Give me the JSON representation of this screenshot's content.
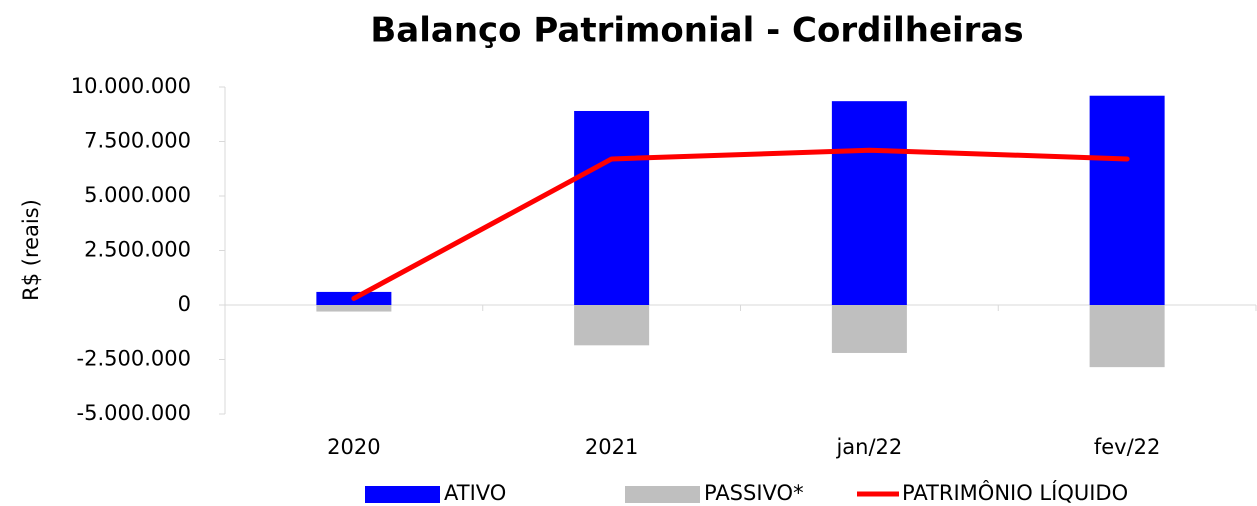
{
  "chart_data": {
    "type": "bar",
    "title": "Balanço Patrimonial - Cordilheiras",
    "y_label": "R$ (reais)",
    "categories": [
      "2020",
      "2021",
      "jan/22",
      "fev/22"
    ],
    "series": [
      {
        "name": "ATIVO",
        "type": "bar",
        "color": "#0000ff",
        "values": [
          600000,
          8900000,
          9350000,
          9600000
        ]
      },
      {
        "name": "PASSIVO*",
        "type": "bar",
        "color": "#bfbfbf",
        "values": [
          -300000,
          -1850000,
          -2200000,
          -2850000
        ]
      },
      {
        "name": "PATRIMÔNIO LÍQUIDO",
        "type": "line",
        "color": "#ff0000",
        "values": [
          300000,
          6700000,
          7100000,
          6700000
        ]
      }
    ],
    "ylim": [
      -5000000,
      10000000
    ],
    "yticks": [
      {
        "value": 10000000,
        "label": "10.000.000"
      },
      {
        "value": 7500000,
        "label": "7.500.000"
      },
      {
        "value": 5000000,
        "label": "5.000.000"
      },
      {
        "value": 2500000,
        "label": "2.500.000"
      },
      0,
      {
        "value": -2500000,
        "label": "-2.500.000"
      },
      {
        "value": -5000000,
        "label": "-5.000.000"
      }
    ],
    "negative_tick_color": "#ff0000",
    "grid": false,
    "legend": "bottom"
  }
}
